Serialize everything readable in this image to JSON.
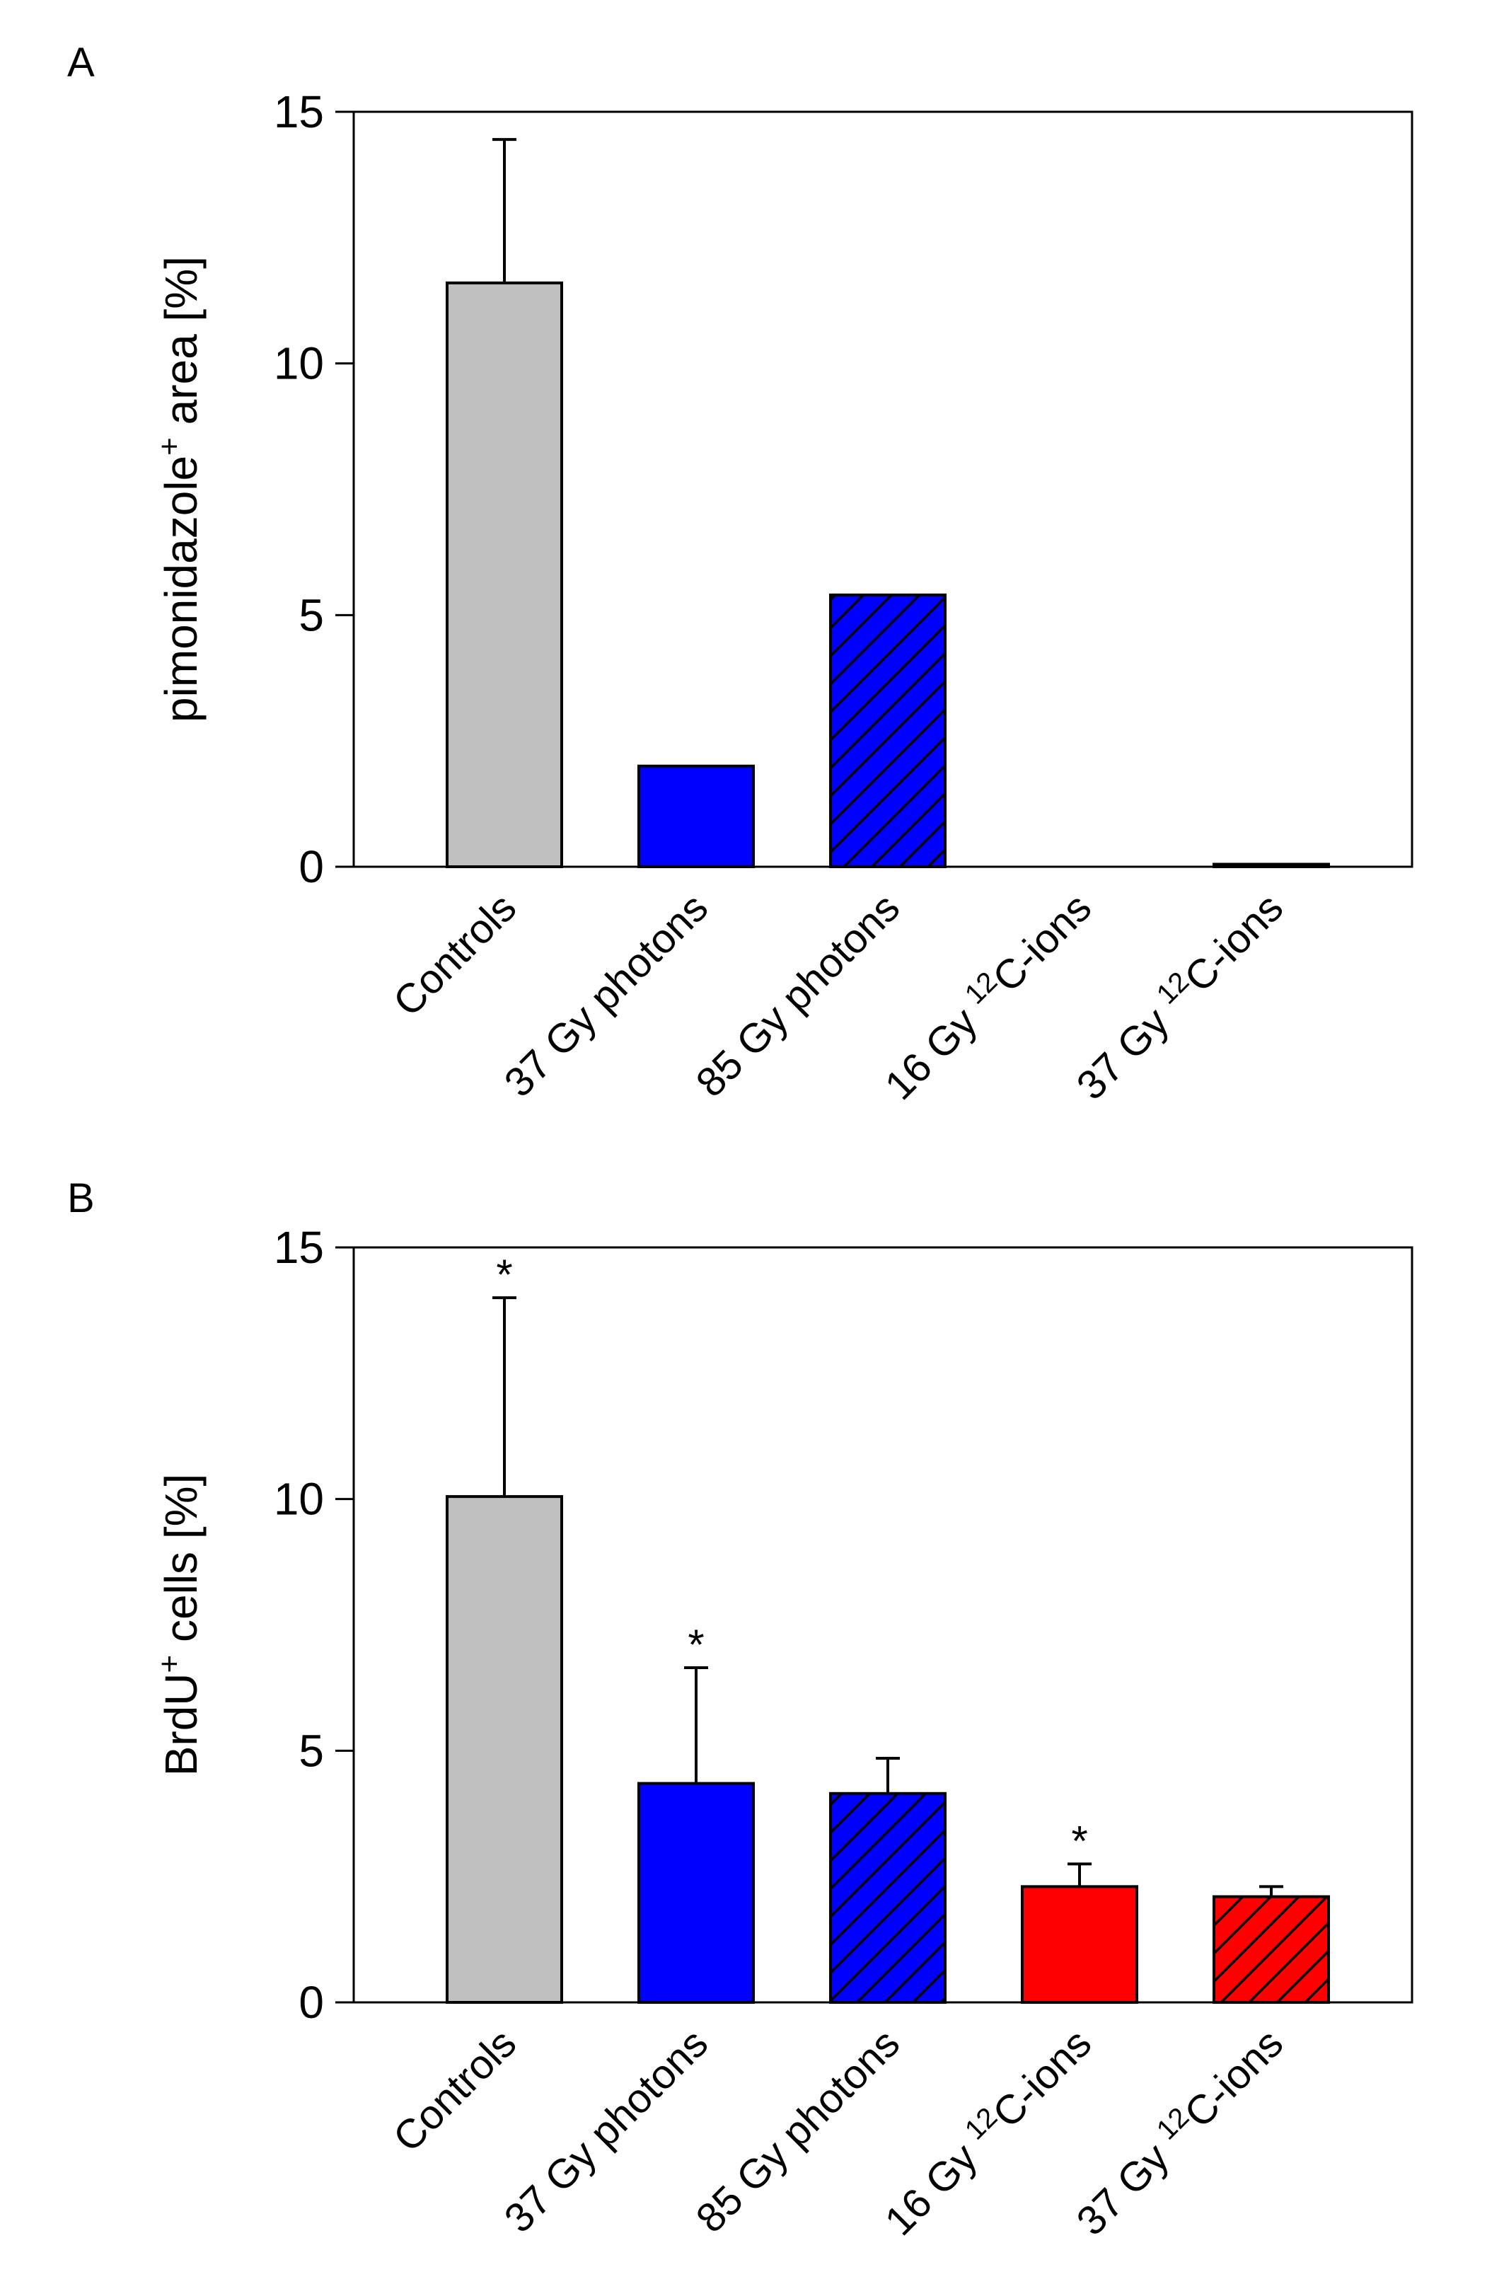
{
  "chart_data": [
    {
      "panel": "A",
      "type": "bar",
      "categories": [
        "Controls",
        "37 Gy photons",
        "85 Gy photons",
        "16 Gy ¹²C-ions",
        "37 Gy ¹²C-ions"
      ],
      "category_parts": [
        {
          "main": "Controls"
        },
        {
          "main": "37 Gy photons"
        },
        {
          "main": "85 Gy photons"
        },
        {
          "pre": "16 Gy ",
          "sup": "12",
          "post": "C-ions"
        },
        {
          "pre": "37 Gy ",
          "sup": "12",
          "post": "C-ions"
        }
      ],
      "values": [
        11.6,
        2.0,
        5.4,
        0.0,
        0.05
      ],
      "error_upper": [
        2.85,
        null,
        null,
        null,
        null
      ],
      "colors": [
        "#c0c0c0",
        "#0000ff",
        "#0000ff",
        "#ff0000",
        "#ff0000"
      ],
      "hatched": [
        false,
        false,
        true,
        false,
        true
      ],
      "significance": [
        "",
        "",
        "",
        "",
        ""
      ],
      "ylabel": {
        "pre": "pimonidazole",
        "sup": "+",
        "post": " area [%]"
      },
      "ylim": [
        0,
        15
      ],
      "yticks": [
        0,
        5,
        10,
        15
      ]
    },
    {
      "panel": "B",
      "type": "bar",
      "categories": [
        "Controls",
        "37 Gy photons",
        "85 Gy photons",
        "16 Gy ¹²C-ions",
        "37 Gy ¹²C-ions"
      ],
      "category_parts": [
        {
          "main": "Controls"
        },
        {
          "main": "37 Gy photons"
        },
        {
          "main": "85 Gy photons"
        },
        {
          "pre": "16 Gy ",
          "sup": "12",
          "post": "C-ions"
        },
        {
          "pre": "37 Gy ",
          "sup": "12",
          "post": "C-ions"
        }
      ],
      "values": [
        10.05,
        4.35,
        4.15,
        2.3,
        2.1
      ],
      "error_upper": [
        3.95,
        2.3,
        0.7,
        0.45,
        0.2
      ],
      "colors": [
        "#c0c0c0",
        "#0000ff",
        "#0000ff",
        "#ff0000",
        "#ff0000"
      ],
      "hatched": [
        false,
        false,
        true,
        false,
        true
      ],
      "significance": [
        "*",
        "*",
        "",
        "*",
        ""
      ],
      "ylabel": {
        "pre": "BrdU",
        "sup": "+",
        "post": " cells [%]"
      },
      "ylim": [
        0,
        15
      ],
      "yticks": [
        0,
        5,
        10,
        15
      ]
    }
  ]
}
